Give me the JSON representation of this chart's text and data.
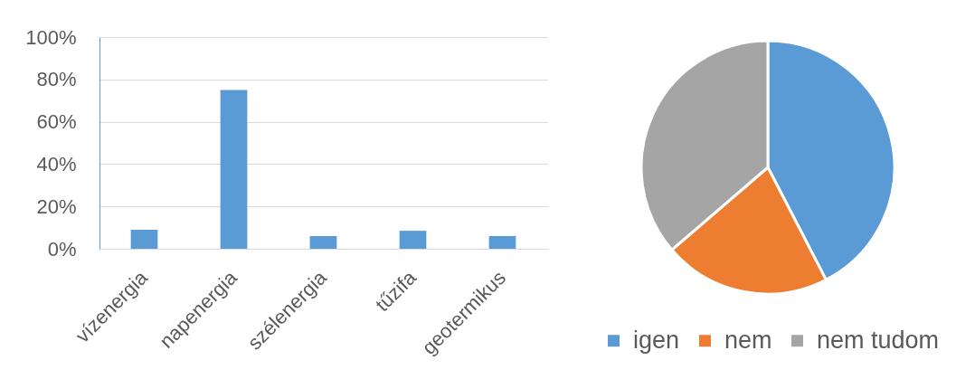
{
  "chart_data": [
    {
      "type": "bar",
      "categories": [
        "vízenergia",
        "napenergia",
        "szélenergia",
        "tűzifa",
        "geotermikus"
      ],
      "values": [
        9,
        75,
        6,
        8.5,
        6
      ],
      "color": "#5b9bd5",
      "ylim": [
        0,
        100
      ],
      "yticks": [
        {
          "value": 0,
          "label": "0%"
        },
        {
          "value": 20,
          "label": "20%"
        },
        {
          "value": 40,
          "label": "40%"
        },
        {
          "value": 60,
          "label": "60%"
        },
        {
          "value": 80,
          "label": "80%"
        },
        {
          "value": 100,
          "label": "100%"
        }
      ],
      "grid": "y"
    },
    {
      "type": "pie",
      "categories": [
        "igen",
        "nem",
        "nem tudom"
      ],
      "values": [
        42.4,
        21.3,
        36.3
      ],
      "colors": [
        "#5b9bd5",
        "#ed7d31",
        "#a5a5a5"
      ],
      "legend": "bottom"
    }
  ]
}
